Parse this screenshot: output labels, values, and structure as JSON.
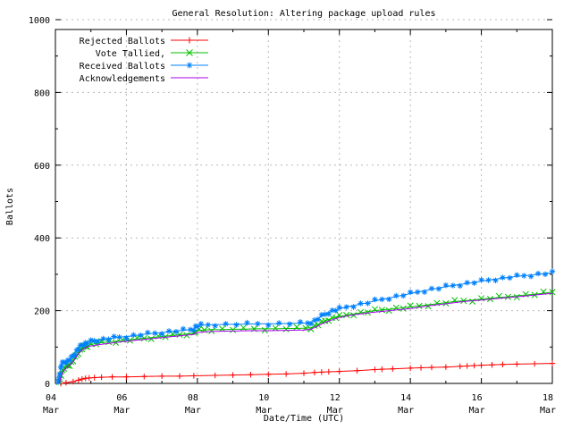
{
  "window": {
    "background": "#ffffff"
  },
  "chart_data": {
    "type": "line",
    "title": "General Resolution: Altering package upload rules",
    "xlabel": "Date/Time (UTC)",
    "ylabel": "Ballots",
    "month_label": "Mar",
    "xlim_days": [
      4,
      18
    ],
    "ylim": [
      0,
      1000
    ],
    "x_major_ticks": [
      "04",
      "06",
      "08",
      "10",
      "12",
      "14",
      "16",
      "18"
    ],
    "x_major_tick_days": [
      4,
      6,
      8,
      10,
      12,
      14,
      16,
      18
    ],
    "x_minor_tick_step_days": 1,
    "y_major_ticks": [
      0,
      200,
      400,
      600,
      800,
      1000
    ],
    "y_minor_tick_step": 100,
    "grid": "dashed-gray",
    "grid_color": "#b8b8b8",
    "border_color": "#000000",
    "legend_position": "top-left-inside",
    "series": [
      {
        "name": "Rejected Ballots",
        "color": "#ff0000",
        "marker": "plus",
        "points": [
          [
            4.15,
            0
          ],
          [
            4.3,
            2
          ],
          [
            4.5,
            5
          ],
          [
            4.65,
            9
          ],
          [
            4.75,
            12
          ],
          [
            4.85,
            14
          ],
          [
            4.95,
            15
          ],
          [
            5.1,
            16
          ],
          [
            5.3,
            17
          ],
          [
            5.6,
            18
          ],
          [
            6.0,
            18
          ],
          [
            6.5,
            19
          ],
          [
            7.0,
            20
          ],
          [
            7.5,
            20
          ],
          [
            7.9,
            21
          ],
          [
            8.5,
            22
          ],
          [
            9.0,
            23
          ],
          [
            9.5,
            24
          ],
          [
            10.0,
            25
          ],
          [
            10.5,
            26
          ],
          [
            11.0,
            28
          ],
          [
            11.3,
            30
          ],
          [
            11.5,
            31
          ],
          [
            11.7,
            32
          ],
          [
            12.0,
            33
          ],
          [
            12.5,
            35
          ],
          [
            13.0,
            38
          ],
          [
            13.2,
            39
          ],
          [
            13.5,
            40
          ],
          [
            14.0,
            42
          ],
          [
            14.3,
            43
          ],
          [
            14.6,
            44
          ],
          [
            15.0,
            45
          ],
          [
            15.4,
            47
          ],
          [
            15.6,
            48
          ],
          [
            15.8,
            49
          ],
          [
            16.0,
            50
          ],
          [
            16.3,
            51
          ],
          [
            16.6,
            52
          ],
          [
            17.0,
            53
          ],
          [
            17.5,
            54
          ],
          [
            18.0,
            55
          ]
        ]
      },
      {
        "name": "Vote Tallied,",
        "color": "#00c000",
        "marker": "cross",
        "points": [
          [
            4.1,
            0
          ],
          [
            4.13,
            12
          ],
          [
            4.16,
            25
          ],
          [
            4.2,
            35
          ],
          [
            4.25,
            42
          ],
          [
            4.3,
            46
          ],
          [
            4.35,
            49
          ],
          [
            4.4,
            52
          ],
          [
            4.45,
            57
          ],
          [
            4.5,
            63
          ],
          [
            4.55,
            70
          ],
          [
            4.6,
            78
          ],
          [
            4.65,
            85
          ],
          [
            4.7,
            91
          ],
          [
            4.75,
            96
          ],
          [
            4.8,
            99
          ],
          [
            4.85,
            102
          ],
          [
            4.9,
            104
          ],
          [
            5.0,
            107
          ],
          [
            5.15,
            110
          ],
          [
            5.3,
            112
          ],
          [
            5.5,
            114
          ],
          [
            5.7,
            116
          ],
          [
            5.9,
            118
          ],
          [
            6.1,
            120
          ],
          [
            6.3,
            122
          ],
          [
            6.5,
            124
          ],
          [
            6.7,
            126
          ],
          [
            6.9,
            128
          ],
          [
            7.1,
            130
          ],
          [
            7.3,
            132
          ],
          [
            7.5,
            134
          ],
          [
            7.7,
            136
          ],
          [
            7.9,
            138
          ],
          [
            7.95,
            143
          ],
          [
            8.05,
            146
          ],
          [
            8.2,
            147
          ],
          [
            8.4,
            148
          ],
          [
            8.7,
            148
          ],
          [
            9.0,
            149
          ],
          [
            9.3,
            149
          ],
          [
            9.6,
            150
          ],
          [
            9.9,
            150
          ],
          [
            10.2,
            150
          ],
          [
            10.5,
            151
          ],
          [
            10.8,
            151
          ],
          [
            11.05,
            152
          ],
          [
            11.2,
            153
          ],
          [
            11.3,
            157
          ],
          [
            11.4,
            162
          ],
          [
            11.5,
            167
          ],
          [
            11.6,
            172
          ],
          [
            11.7,
            176
          ],
          [
            11.8,
            179
          ],
          [
            11.9,
            182
          ],
          [
            12.0,
            184
          ],
          [
            12.2,
            188
          ],
          [
            12.4,
            191
          ],
          [
            12.6,
            194
          ],
          [
            12.8,
            197
          ],
          [
            13.0,
            200
          ],
          [
            13.2,
            202
          ],
          [
            13.4,
            204
          ],
          [
            13.6,
            206
          ],
          [
            13.8,
            208
          ],
          [
            14.0,
            210
          ],
          [
            14.25,
            213
          ],
          [
            14.5,
            216
          ],
          [
            14.75,
            219
          ],
          [
            15.0,
            222
          ],
          [
            15.25,
            225
          ],
          [
            15.5,
            227
          ],
          [
            15.75,
            229
          ],
          [
            16.0,
            232
          ],
          [
            16.25,
            234
          ],
          [
            16.5,
            236
          ],
          [
            16.75,
            238
          ],
          [
            17.0,
            241
          ],
          [
            17.25,
            243
          ],
          [
            17.5,
            245
          ],
          [
            17.75,
            248
          ],
          [
            18.0,
            251
          ]
        ]
      },
      {
        "name": "Received Ballots",
        "color": "#0080ff",
        "marker": "star",
        "points": [
          [
            4.08,
            0
          ],
          [
            4.1,
            15
          ],
          [
            4.12,
            30
          ],
          [
            4.15,
            42
          ],
          [
            4.17,
            50
          ],
          [
            4.2,
            55
          ],
          [
            4.25,
            58
          ],
          [
            4.3,
            60
          ],
          [
            4.35,
            62
          ],
          [
            4.4,
            65
          ],
          [
            4.45,
            70
          ],
          [
            4.5,
            76
          ],
          [
            4.55,
            83
          ],
          [
            4.6,
            90
          ],
          [
            4.65,
            96
          ],
          [
            4.7,
            101
          ],
          [
            4.75,
            105
          ],
          [
            4.8,
            108
          ],
          [
            4.85,
            110
          ],
          [
            4.9,
            112
          ],
          [
            5.0,
            115
          ],
          [
            5.1,
            117
          ],
          [
            5.2,
            119
          ],
          [
            5.35,
            121
          ],
          [
            5.5,
            123
          ],
          [
            5.65,
            125
          ],
          [
            5.8,
            127
          ],
          [
            6.0,
            129
          ],
          [
            6.2,
            131
          ],
          [
            6.4,
            134
          ],
          [
            6.6,
            136
          ],
          [
            6.8,
            138
          ],
          [
            7.0,
            140
          ],
          [
            7.2,
            142
          ],
          [
            7.4,
            144
          ],
          [
            7.6,
            146
          ],
          [
            7.8,
            148
          ],
          [
            7.9,
            150
          ],
          [
            7.95,
            156
          ],
          [
            8.0,
            158
          ],
          [
            8.1,
            160
          ],
          [
            8.3,
            161
          ],
          [
            8.5,
            162
          ],
          [
            8.8,
            162
          ],
          [
            9.1,
            163
          ],
          [
            9.4,
            163
          ],
          [
            9.7,
            164
          ],
          [
            10.0,
            164
          ],
          [
            10.3,
            164
          ],
          [
            10.6,
            165
          ],
          [
            10.9,
            165
          ],
          [
            11.1,
            166
          ],
          [
            11.2,
            168
          ],
          [
            11.3,
            172
          ],
          [
            11.4,
            178
          ],
          [
            11.5,
            185
          ],
          [
            11.6,
            190
          ],
          [
            11.7,
            195
          ],
          [
            11.8,
            199
          ],
          [
            11.9,
            202
          ],
          [
            12.0,
            205
          ],
          [
            12.2,
            210
          ],
          [
            12.4,
            214
          ],
          [
            12.6,
            218
          ],
          [
            12.8,
            222
          ],
          [
            13.0,
            227
          ],
          [
            13.2,
            231
          ],
          [
            13.4,
            235
          ],
          [
            13.6,
            239
          ],
          [
            13.8,
            243
          ],
          [
            14.0,
            247
          ],
          [
            14.2,
            251
          ],
          [
            14.4,
            255
          ],
          [
            14.6,
            259
          ],
          [
            14.8,
            262
          ],
          [
            15.0,
            266
          ],
          [
            15.2,
            269
          ],
          [
            15.4,
            272
          ],
          [
            15.6,
            275
          ],
          [
            15.8,
            278
          ],
          [
            16.0,
            281
          ],
          [
            16.2,
            284
          ],
          [
            16.4,
            287
          ],
          [
            16.6,
            289
          ],
          [
            16.8,
            292
          ],
          [
            17.0,
            294
          ],
          [
            17.2,
            296
          ],
          [
            17.4,
            298
          ],
          [
            17.6,
            300
          ],
          [
            17.8,
            302
          ],
          [
            18.0,
            304
          ]
        ]
      },
      {
        "name": "Acknowledgements",
        "color": "#aa00ee",
        "marker": "none",
        "points": [
          [
            4.1,
            0
          ],
          [
            4.2,
            30
          ],
          [
            4.3,
            42
          ],
          [
            4.4,
            50
          ],
          [
            4.5,
            60
          ],
          [
            4.6,
            75
          ],
          [
            4.7,
            88
          ],
          [
            4.8,
            95
          ],
          [
            4.9,
            100
          ],
          [
            5.0,
            103
          ],
          [
            5.25,
            107
          ],
          [
            5.5,
            110
          ],
          [
            5.75,
            113
          ],
          [
            6.0,
            116
          ],
          [
            6.5,
            121
          ],
          [
            7.0,
            126
          ],
          [
            7.5,
            131
          ],
          [
            7.9,
            135
          ],
          [
            8.0,
            140
          ],
          [
            8.25,
            142
          ],
          [
            8.5,
            143
          ],
          [
            9.0,
            144
          ],
          [
            9.5,
            145
          ],
          [
            10.0,
            145
          ],
          [
            10.5,
            146
          ],
          [
            11.0,
            147
          ],
          [
            11.2,
            149
          ],
          [
            11.4,
            158
          ],
          [
            11.6,
            168
          ],
          [
            11.8,
            175
          ],
          [
            12.0,
            181
          ],
          [
            12.25,
            186
          ],
          [
            12.5,
            190
          ],
          [
            12.75,
            193
          ],
          [
            13.0,
            196
          ],
          [
            13.5,
            201
          ],
          [
            14.0,
            206
          ],
          [
            14.5,
            213
          ],
          [
            15.0,
            219
          ],
          [
            15.5,
            225
          ],
          [
            16.0,
            229
          ],
          [
            16.5,
            234
          ],
          [
            17.0,
            238
          ],
          [
            17.5,
            243
          ],
          [
            18.0,
            248
          ]
        ]
      }
    ]
  }
}
